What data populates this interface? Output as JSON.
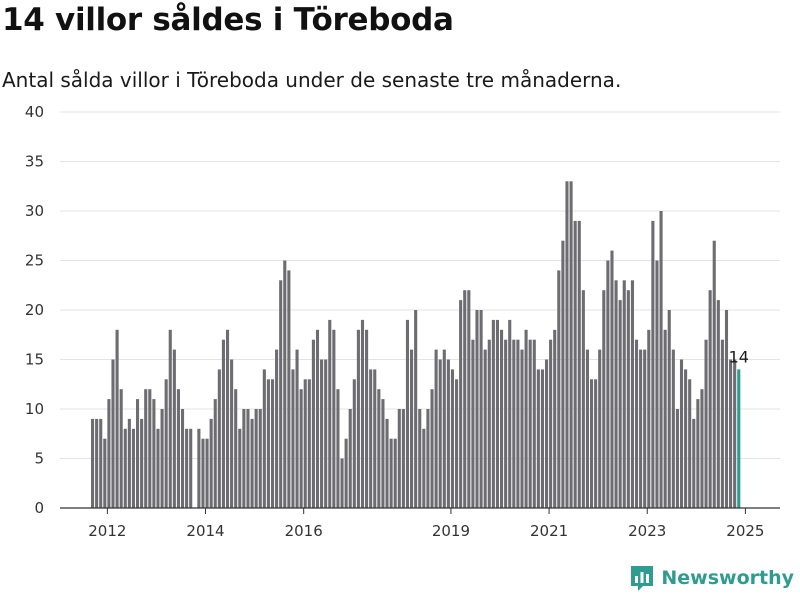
{
  "header": {
    "title": "14 villor såldes i Töreboda",
    "subtitle": "Antal sålda villor i Töreboda under de senaste tre månaderna."
  },
  "brand": {
    "name": "Newsworthy",
    "icon": "newsworthy-logo-icon",
    "color": "#2f9c8f"
  },
  "chart_data": {
    "type": "bar",
    "x_start": "2011-09",
    "xticks": [
      "2012",
      "2014",
      "2016",
      "2019",
      "2021",
      "2023",
      "2025"
    ],
    "yticks": [
      0,
      5,
      10,
      15,
      20,
      25,
      30,
      35,
      40
    ],
    "ylim": [
      0,
      40
    ],
    "grid": true,
    "values": [
      9,
      9,
      9,
      7,
      11,
      15,
      18,
      12,
      8,
      9,
      8,
      11,
      9,
      12,
      12,
      11,
      8,
      10,
      13,
      18,
      16,
      12,
      10,
      8,
      8,
      0,
      8,
      7,
      7,
      9,
      11,
      14,
      17,
      18,
      15,
      12,
      8,
      10,
      10,
      9,
      10,
      10,
      14,
      13,
      13,
      16,
      23,
      25,
      24,
      14,
      16,
      12,
      13,
      13,
      17,
      18,
      15,
      15,
      19,
      18,
      12,
      5,
      7,
      10,
      13,
      18,
      19,
      18,
      14,
      14,
      12,
      11,
      9,
      7,
      7,
      10,
      10,
      19,
      16,
      20,
      10,
      8,
      10,
      12,
      16,
      15,
      16,
      15,
      14,
      13,
      21,
      22,
      22,
      17,
      20,
      20,
      16,
      17,
      19,
      19,
      18,
      17,
      19,
      17,
      17,
      16,
      18,
      17,
      17,
      14,
      14,
      15,
      17,
      18,
      24,
      27,
      33,
      33,
      29,
      29,
      22,
      16,
      13,
      13,
      16,
      22,
      25,
      26,
      23,
      21,
      23,
      22,
      23,
      17,
      16,
      16,
      18,
      29,
      25,
      30,
      18,
      20,
      16,
      10,
      15,
      14,
      13,
      9,
      11,
      12,
      17,
      22,
      27,
      21,
      17,
      20,
      15,
      15,
      14
    ],
    "highlight_index": 158,
    "bar_color": "#6d6c70",
    "highlight_color": "#2a9d8f",
    "data_labels": [
      {
        "index": 158,
        "text": "14"
      }
    ]
  }
}
